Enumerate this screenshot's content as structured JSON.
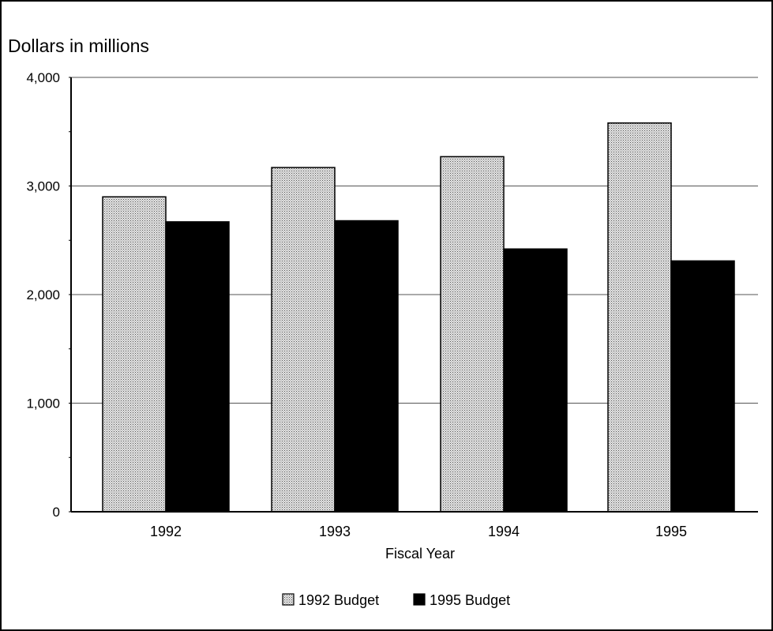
{
  "chart_data": {
    "type": "bar",
    "ylabel": "Dollars in millions",
    "xlabel": "Fiscal Year",
    "categories": [
      "1992",
      "1993",
      "1994",
      "1995"
    ],
    "ylim": [
      0,
      4000
    ],
    "yticks": [
      0,
      1000,
      2000,
      3000,
      4000
    ],
    "ytick_labels": [
      "0",
      "1,000",
      "2,000",
      "3,000",
      "4,000"
    ],
    "grid": true,
    "legend_position": "bottom",
    "series": [
      {
        "name": "1992 Budget",
        "values": [
          2900,
          3170,
          3270,
          3580
        ],
        "color": "#c8c8c8",
        "pattern": "stipple"
      },
      {
        "name": "1995 Budget",
        "values": [
          2670,
          2680,
          2420,
          2310
        ],
        "color": "#000000",
        "pattern": "solid"
      }
    ]
  }
}
